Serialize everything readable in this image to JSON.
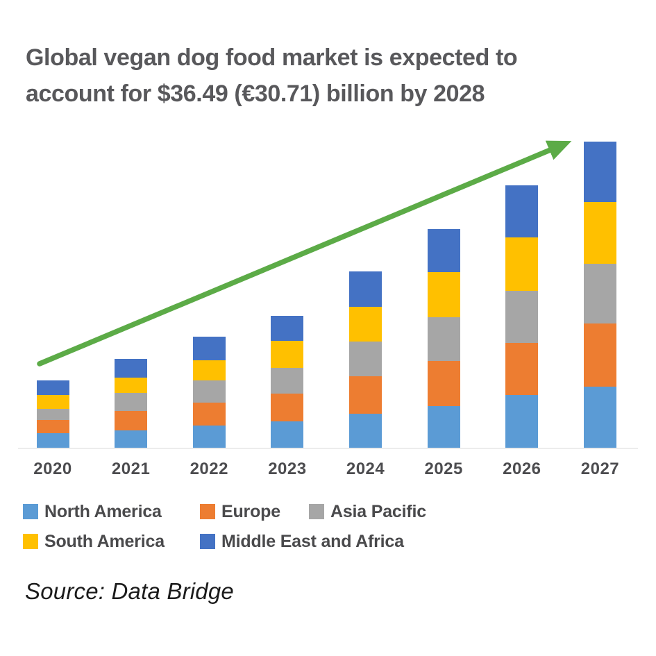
{
  "page": {
    "background": "#ffffff"
  },
  "title": {
    "line1": "Global vegan dog food market is expected to",
    "line2": "account for $36.49 (€30.71) billion by 2028",
    "color": "#58585b"
  },
  "source": {
    "text": "Source: Data Bridge"
  },
  "arrow": {
    "name": "growth-trend-arrow",
    "color": "#5cab47"
  },
  "chart_data": {
    "type": "bar",
    "stacked": true,
    "title": "Global vegan dog food market is expected to account for $36.49 (€30.71) billion by 2028",
    "categories": [
      "2020",
      "2021",
      "2022",
      "2023",
      "2024",
      "2025",
      "2026",
      "2027"
    ],
    "series": [
      {
        "name": "North America",
        "color": "#5b9bd5",
        "values": [
          1.4,
          1.7,
          2.2,
          2.6,
          3.3,
          4.1,
          5.2,
          6.0
        ]
      },
      {
        "name": "Europe",
        "color": "#ed7d31",
        "values": [
          1.3,
          1.9,
          2.2,
          2.7,
          3.7,
          4.4,
          5.1,
          6.2
        ]
      },
      {
        "name": "Asia Pacific",
        "color": "#a6a6a6",
        "values": [
          1.1,
          1.8,
          2.2,
          2.5,
          3.4,
          4.3,
          5.1,
          5.8
        ]
      },
      {
        "name": "South America",
        "color": "#ffc000",
        "values": [
          1.4,
          1.5,
          2.0,
          2.7,
          3.4,
          4.4,
          5.2,
          6.1
        ]
      },
      {
        "name": "Middle East and Africa",
        "color": "#4472c4",
        "values": [
          1.4,
          1.8,
          2.3,
          2.4,
          3.5,
          4.2,
          5.1,
          5.9
        ]
      }
    ],
    "totals_by_year": [
      6.6,
      8.7,
      10.9,
      12.9,
      17.3,
      21.4,
      25.7,
      30.0
    ],
    "units": "USD billion (estimated; chart has no value axis)",
    "xlabel": "",
    "ylabel": "",
    "ylim": [
      0,
      30
    ],
    "grid": false,
    "axes_hidden": true,
    "legend_position": "bottom",
    "annotations": [
      {
        "type": "arrow",
        "meaning": "upward growth trend",
        "color": "#5cab47"
      }
    ]
  }
}
